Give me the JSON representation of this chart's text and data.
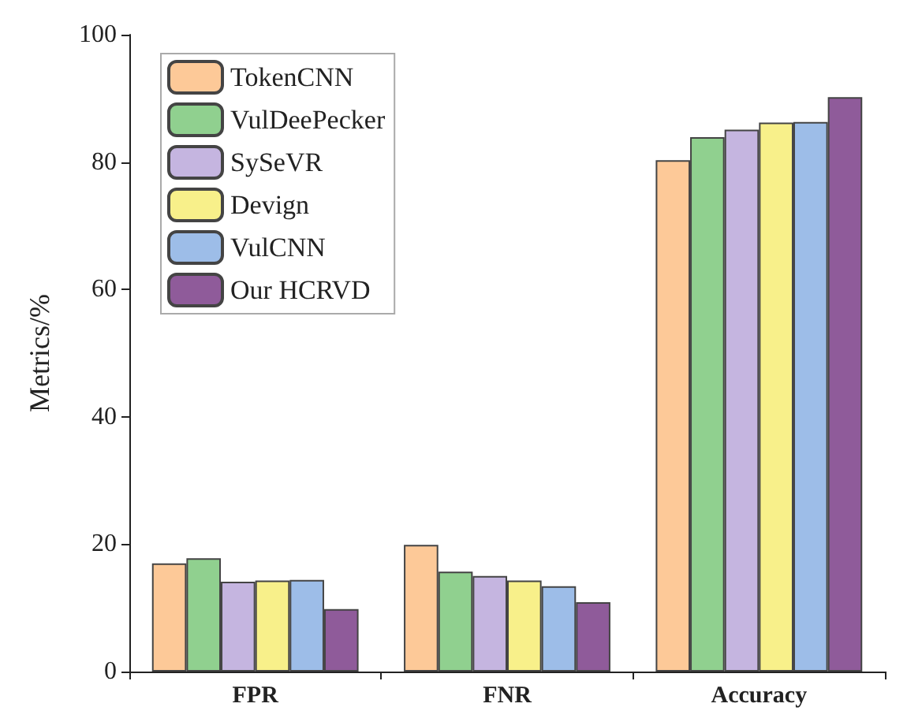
{
  "chart_data": {
    "type": "bar",
    "ylabel": "Metrics/%",
    "categories": [
      "FPR",
      "FNR",
      "Accuracy"
    ],
    "series": [
      {
        "name": "TokenCNN",
        "color": "#fdc998",
        "values": [
          17.0,
          19.9,
          80.3
        ]
      },
      {
        "name": "VulDeePecker",
        "color": "#90d08f",
        "values": [
          17.8,
          15.7,
          83.9
        ]
      },
      {
        "name": "SySeVR",
        "color": "#c5b5e0",
        "values": [
          14.1,
          15.0,
          85.1
        ]
      },
      {
        "name": "Devign",
        "color": "#f8f08a",
        "values": [
          14.3,
          14.3,
          86.2
        ]
      },
      {
        "name": "VulCNN",
        "color": "#9dbde8",
        "values": [
          14.4,
          13.4,
          86.3
        ]
      },
      {
        "name": "Our HCRVD",
        "color": "#8f5b9a",
        "values": [
          9.8,
          10.9,
          90.2
        ]
      }
    ],
    "ylim": [
      0,
      100
    ],
    "yticks": [
      0,
      20,
      40,
      60,
      80,
      100
    ],
    "grid": false,
    "legend": "top left"
  }
}
